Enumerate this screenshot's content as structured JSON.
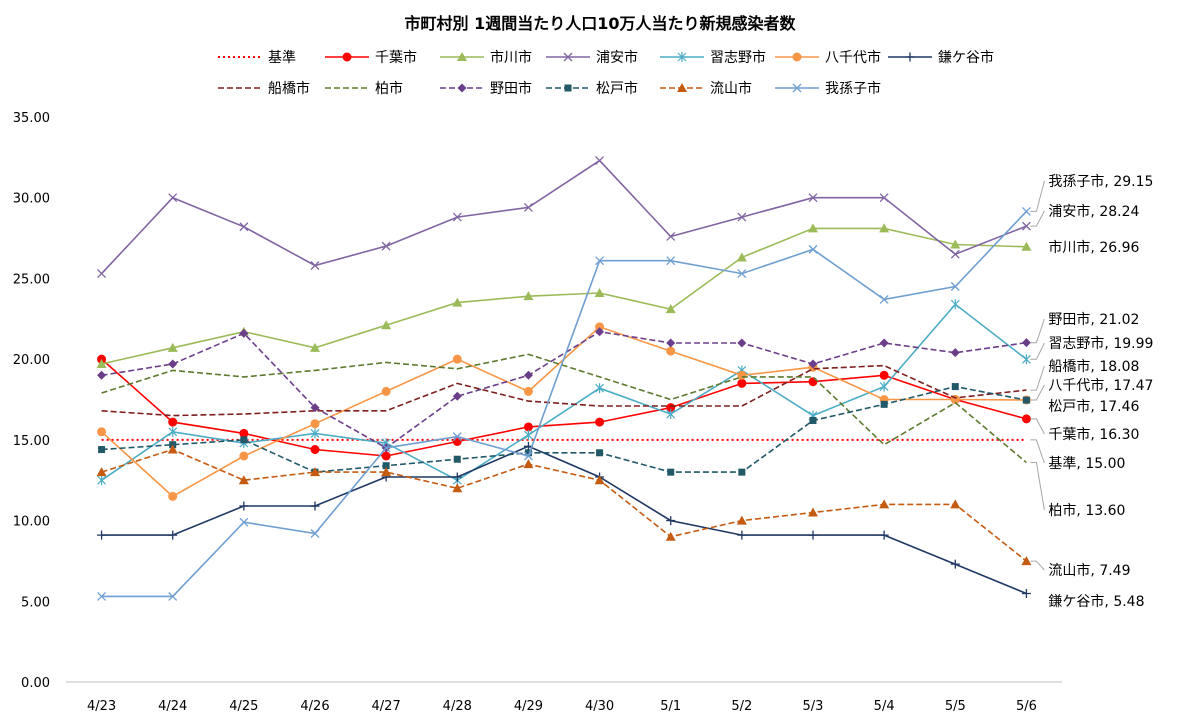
{
  "chart_data": {
    "type": "line",
    "title": "市町村別 1週間当たり人口10万人当たり新規感染者数",
    "xlabel": "",
    "ylabel": "",
    "categories": [
      "4/23",
      "4/24",
      "4/25",
      "4/26",
      "4/27",
      "4/28",
      "4/29",
      "4/30",
      "5/1",
      "5/2",
      "5/3",
      "5/4",
      "5/5",
      "5/6"
    ],
    "ylim": [
      0,
      35
    ],
    "yticks": [
      "0.00",
      "5.00",
      "10.00",
      "15.00",
      "20.00",
      "25.00",
      "30.00",
      "35.00"
    ],
    "grid": false,
    "legend_position": "top",
    "series": [
      {
        "name": "基準",
        "color": "#ff0000",
        "dash": "dot",
        "marker": "none",
        "values": [
          15,
          15,
          15,
          15,
          15,
          15,
          15,
          15,
          15,
          15,
          15,
          15,
          15,
          15
        ],
        "end_label": "基準, 15.00"
      },
      {
        "name": "千葉市",
        "color": "#ff0000",
        "dash": "solid",
        "marker": "circle",
        "values": [
          20.0,
          16.1,
          15.4,
          14.4,
          14.0,
          14.9,
          15.8,
          16.1,
          17.0,
          18.5,
          18.6,
          19.0,
          17.5,
          16.3
        ],
        "end_label": "千葉市, 16.30"
      },
      {
        "name": "市川市",
        "color": "#9bbb59",
        "dash": "solid",
        "marker": "triangle",
        "values": [
          19.7,
          20.7,
          21.7,
          20.7,
          22.1,
          23.5,
          23.9,
          24.1,
          23.1,
          26.3,
          28.1,
          28.1,
          27.1,
          26.96
        ],
        "end_label": "市川市, 26.96"
      },
      {
        "name": "浦安市",
        "color": "#8064a2",
        "dash": "solid",
        "marker": "x",
        "values": [
          25.3,
          30.0,
          28.2,
          25.8,
          27.0,
          28.8,
          29.4,
          32.3,
          27.6,
          28.8,
          30.0,
          30.0,
          26.5,
          28.24
        ],
        "end_label": "浦安市, 28.24"
      },
      {
        "name": "習志野市",
        "color": "#4bacc6",
        "dash": "solid",
        "marker": "star",
        "values": [
          12.5,
          15.5,
          14.8,
          15.4,
          14.8,
          12.5,
          15.3,
          18.2,
          16.6,
          19.3,
          16.5,
          18.3,
          23.4,
          19.99
        ],
        "end_label": "習志野市, 19.99"
      },
      {
        "name": "八千代市",
        "color": "#f79646",
        "dash": "solid",
        "marker": "circle",
        "values": [
          15.5,
          11.5,
          14.0,
          16.0,
          18.0,
          20.0,
          18.0,
          22.0,
          20.5,
          19.0,
          19.5,
          17.5,
          17.5,
          17.47
        ],
        "end_label": "八千代市, 17.47"
      },
      {
        "name": "鎌ケ谷市",
        "color": "#1f3864",
        "dash": "solid",
        "marker": "plus",
        "values": [
          9.1,
          9.1,
          10.9,
          10.9,
          12.7,
          12.7,
          14.6,
          12.7,
          10.0,
          9.1,
          9.1,
          9.1,
          7.3,
          5.48
        ],
        "end_label": "鎌ケ谷市, 5.48"
      },
      {
        "name": "船橋市",
        "color": "#7f1f1f",
        "dash": "dash",
        "marker": "none",
        "values": [
          16.8,
          16.5,
          16.6,
          16.8,
          16.8,
          18.5,
          17.4,
          17.1,
          17.1,
          17.1,
          19.4,
          19.6,
          17.6,
          18.08
        ],
        "end_label": "船橋市, 18.08"
      },
      {
        "name": "柏市",
        "color": "#5e7a2e",
        "dash": "dash",
        "marker": "none",
        "values": [
          17.9,
          19.3,
          18.9,
          19.3,
          19.8,
          19.4,
          20.3,
          18.9,
          17.5,
          18.9,
          18.9,
          14.7,
          17.3,
          13.6
        ],
        "end_label": "柏市, 13.60"
      },
      {
        "name": "野田市",
        "color": "#6b3e8a",
        "dash": "dash",
        "marker": "diamond",
        "values": [
          19.0,
          19.7,
          21.6,
          17.0,
          14.5,
          17.7,
          19.0,
          21.7,
          21.0,
          21.0,
          19.7,
          21.0,
          20.4,
          21.02
        ],
        "end_label": "野田市, 21.02"
      },
      {
        "name": "松戸市",
        "color": "#215968",
        "dash": "dash",
        "marker": "square",
        "values": [
          14.4,
          14.7,
          15.0,
          13.0,
          13.4,
          13.8,
          14.2,
          14.2,
          13.0,
          13.0,
          16.2,
          17.2,
          18.3,
          17.46
        ],
        "end_label": "松戸市, 17.46"
      },
      {
        "name": "流山市",
        "color": "#c55a11",
        "dash": "dash",
        "marker": "triangle",
        "values": [
          13.0,
          14.4,
          12.5,
          13.0,
          13.0,
          12.0,
          13.5,
          12.5,
          9.0,
          10.0,
          10.5,
          11.0,
          11.0,
          7.49
        ],
        "end_label": "流山市, 7.49"
      },
      {
        "name": "我孫子市",
        "color": "#6f9fd1",
        "dash": "solid",
        "marker": "x",
        "values": [
          5.3,
          5.3,
          9.9,
          9.2,
          14.5,
          15.2,
          14.0,
          26.1,
          26.1,
          25.3,
          26.8,
          23.7,
          24.5,
          29.15
        ],
        "end_label": "我孫子市, 29.15"
      }
    ]
  }
}
